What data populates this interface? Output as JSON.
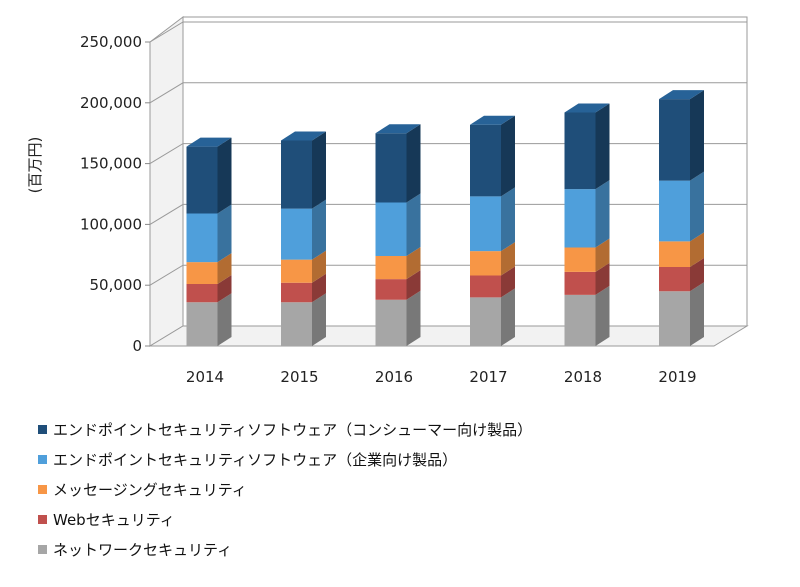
{
  "chart_data": {
    "type": "bar",
    "stacked": true,
    "three_d": true,
    "categories": [
      "2014",
      "2015",
      "2016",
      "2017",
      "2018",
      "2019"
    ],
    "ylabel": "(百万円)",
    "ylim": [
      0,
      250000
    ],
    "yticks": [
      "0",
      "50,000",
      "100,000",
      "150,000",
      "200,000",
      "250,000"
    ],
    "grid": true,
    "legend_position": "bottom",
    "series": [
      {
        "name": "ネットワークセキュリティ",
        "color": "#a6a6a6",
        "values": [
          36000,
          36000,
          38000,
          40000,
          42000,
          45000
        ]
      },
      {
        "name": "Webセキュリティ",
        "color": "#c0504d",
        "values": [
          15000,
          16000,
          17000,
          18000,
          19000,
          20000
        ]
      },
      {
        "name": "メッセージングセキュリティ",
        "color": "#f79646",
        "values": [
          18000,
          19000,
          19000,
          20000,
          20000,
          21000
        ]
      },
      {
        "name": "エンドポイントセキュリティソフトウェア（企業向け製品）",
        "color": "#4f9fdb",
        "values": [
          40000,
          42000,
          44000,
          45000,
          48000,
          50000
        ]
      },
      {
        "name": "エンドポイントセキュリティソフトウェア（コンシューマー向け製品）",
        "color": "#1f4e79",
        "values": [
          55000,
          56000,
          57000,
          59000,
          63000,
          67000
        ]
      }
    ]
  }
}
